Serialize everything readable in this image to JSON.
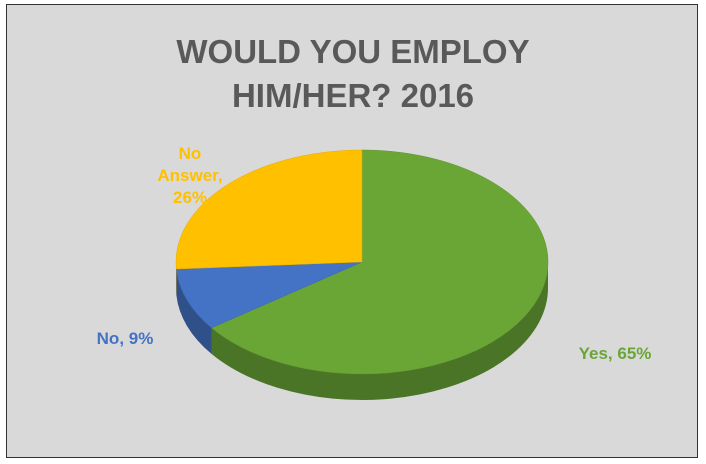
{
  "chart_data": {
    "type": "pie",
    "title": "WOULD YOU EMPLOY HIM/HER? 2016",
    "values": [
      65,
      9,
      26
    ],
    "value_labels": [
      "Yes, 65%",
      "No, 9%",
      "No Answer, 26%"
    ],
    "colors": [
      "#6aa636",
      "#4472c4",
      "#ffc000"
    ]
  }
}
